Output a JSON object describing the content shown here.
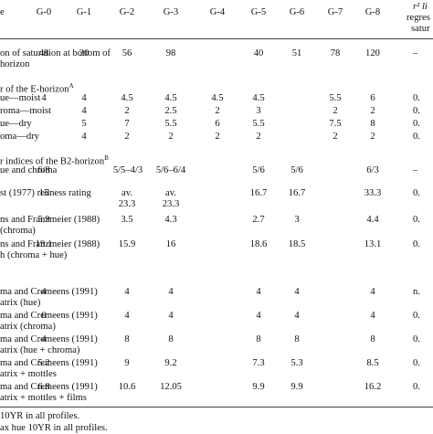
{
  "columns": [
    "G-0",
    "G-1",
    "G-2",
    "G-3",
    "G-4",
    "G-5",
    "G-6",
    "G-7",
    "G-8"
  ],
  "last_col_header": [
    "r² li",
    "regres",
    "satur"
  ],
  "rows": {
    "saturation": {
      "label1": "on of saturation at bottom of",
      "label2": "horizon",
      "values": [
        "48",
        "30",
        "56",
        "98",
        "40",
        "51",
        "78",
        "120"
      ],
      "last": "–"
    },
    "e_header": "r of the E-horizon",
    "e_sup": "A",
    "e1": {
      "label": "ue—moist",
      "values": [
        "4",
        "4",
        "4.5",
        "4.5",
        "4.5",
        "4.5",
        "5.5",
        "6"
      ],
      "last": "0."
    },
    "e2": {
      "label": "roma—moist",
      "values": [
        "4",
        "2",
        "2.5",
        "2",
        "3",
        "2",
        "2"
      ],
      "last": "0."
    },
    "e3": {
      "label": "ue—dry",
      "values": [
        "5",
        "7",
        "5.5",
        "6",
        "5.5",
        "7.5",
        "8"
      ],
      "last": "0."
    },
    "e4": {
      "label": "oma—dry",
      "values": [
        "4",
        "2",
        "2",
        "2",
        "2",
        "2",
        "2"
      ],
      "last": "0."
    },
    "b2_header": "r indices of the B2-horizon",
    "b2_sup": "B",
    "hue_chroma": {
      "label": "ue and chroma",
      "values": [
        "6/8",
        "5/5–4/3",
        "5/6–6/4",
        "5/6",
        "5/6",
        "6/3"
      ],
      "last": "–"
    },
    "redness": {
      "label": "st (1977) redness rating",
      "values": [
        "15",
        "av.",
        "av.",
        "16.7",
        "16.7",
        "33.3"
      ],
      "values2": [
        "23.3"
      ],
      "last": "0."
    },
    "hf_chroma": {
      "label1": "ns and Franzmeier (1988)",
      "label2": "(chroma)",
      "values": [
        "5.9",
        "3.5",
        "4.3",
        "2.7",
        "3",
        "4.4"
      ],
      "last": "0."
    },
    "hf_chroma_hue": {
      "label1": "ns and Franzmeier (1988)",
      "label2": "h (chroma + hue)",
      "values": [
        "19.1",
        "15.9",
        "16",
        "18.6",
        "18.5",
        "13.1"
      ],
      "last": "0."
    },
    "cc_hue": {
      "label1": "ma and Cremeens (1991)",
      "label2": "atrix (hue)",
      "values": [
        "4",
        "4",
        "4",
        "4",
        "4",
        "4"
      ],
      "last": "n."
    },
    "cc_chroma": {
      "label1": "ma and Cremeens (1991)",
      "label2": "atrix (chroma)",
      "values": [
        "0",
        "4",
        "4",
        "4",
        "4",
        "4"
      ],
      "last": "0."
    },
    "cc_hue_chroma": {
      "label1": "ma and Cremeens (1991)",
      "label2": "atrix (hue + chroma)",
      "values": [
        "4",
        "8",
        "8",
        "8",
        "8",
        "8"
      ],
      "last": "0."
    },
    "cc_mottles": {
      "label1": "ma and Cremeens (1991)",
      "label2": "atrix + mottles",
      "values": [
        "5.2",
        "9",
        "9.2",
        "7.3",
        "5.3",
        "8.5"
      ],
      "last": "0."
    },
    "cc_films": {
      "label1": "ma and Cremeens (1991)",
      "label2": "atrix + mottles + films",
      "values": [
        "6.8",
        "10.6",
        "12.05",
        "9.9",
        "9.9",
        "16.2"
      ],
      "last": "0."
    }
  },
  "footnotes": [
    "10YR in all profiles.",
    "ax hue 10YR in all profiles."
  ]
}
